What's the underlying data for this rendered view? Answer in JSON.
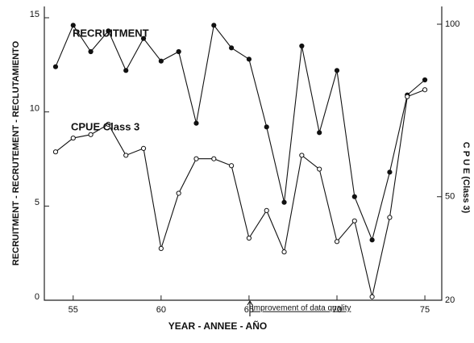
{
  "chart_data": {
    "type": "line",
    "xlabel": "YEAR - ANNEE - AÑO",
    "ylabel": "RECRUITMENT - RECRUTEMENT - RECLUTAMIENTO",
    "y2label": "C P U E (Class 3)",
    "annotation": "Improvement of data quality",
    "x": [
      54,
      55,
      56,
      57,
      58,
      59,
      60,
      61,
      62,
      63,
      64,
      65,
      66,
      67,
      68,
      69,
      70,
      71,
      72,
      73,
      74,
      75
    ],
    "xlim": [
      53.36,
      75.96
    ],
    "xticks": [
      55,
      60,
      65,
      70,
      75
    ],
    "ylim": [
      0,
      15.6
    ],
    "yticks": [
      0,
      5,
      10,
      15
    ],
    "y2lim": [
      20,
      100
    ],
    "y2ticks": [
      20,
      50,
      100
    ],
    "series": [
      {
        "name": "RECRUITMENT",
        "color": "#111111",
        "marker": "filled",
        "values": [
          12.4,
          14.6,
          13.2,
          14.3,
          12.2,
          13.9,
          12.7,
          13.2,
          9.4,
          14.6,
          13.4,
          12.8,
          9.2,
          5.2,
          13.5,
          8.9,
          12.2,
          5.5,
          3.2,
          6.8,
          10.9,
          11.7
        ]
      },
      {
        "name": "CPUE Class 3",
        "color": "#111111",
        "marker": "open",
        "axis": "y2",
        "values": [
          63,
          67,
          68,
          71,
          62,
          64,
          35,
          51,
          61,
          61,
          59,
          38,
          46,
          34,
          62,
          58,
          37,
          43,
          21,
          44,
          79,
          81
        ]
      }
    ]
  }
}
